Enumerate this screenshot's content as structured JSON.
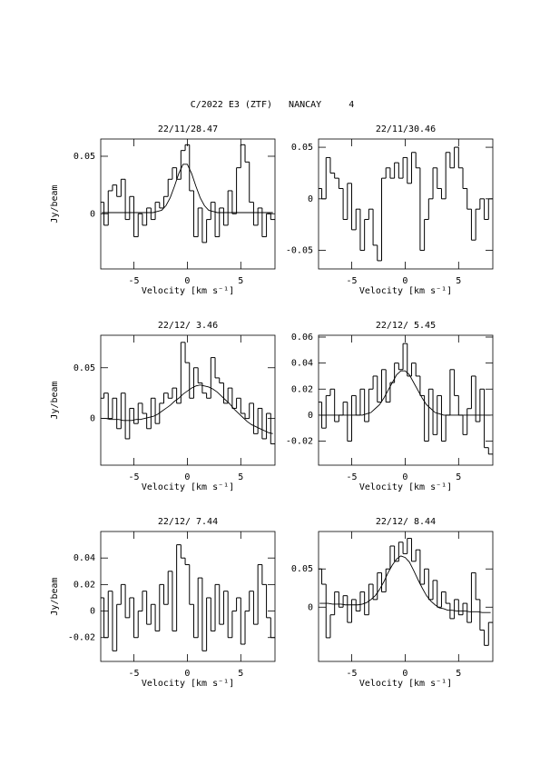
{
  "title": "C/2022 E3 (ZTF)   NANCAY     4",
  "chart_data": [
    {
      "type": "line",
      "title": "22/11/28.47",
      "xlabel": "Velocity [km s⁻¹]",
      "ylabel": "Jy/beam",
      "x": [
        -8.0,
        -7.6,
        -7.2,
        -6.8,
        -6.4,
        -6.0,
        -5.6,
        -5.2,
        -4.8,
        -4.4,
        -4.0,
        -3.6,
        -3.2,
        -2.8,
        -2.4,
        -2.0,
        -1.6,
        -1.2,
        -0.8,
        -0.4,
        0.0,
        0.4,
        0.8,
        1.2,
        1.6,
        2.0,
        2.4,
        2.8,
        3.2,
        3.6,
        4.0,
        4.4,
        4.8,
        5.2,
        5.6,
        6.0,
        6.4,
        6.8,
        7.2,
        7.6,
        8.0
      ],
      "xlim": [
        -8.1,
        8.2
      ],
      "xticks": [
        -5,
        0,
        5
      ],
      "ylim": [
        -0.048,
        0.065
      ],
      "yticks": [
        0,
        0.05
      ],
      "series": [
        {
          "color": "#000000",
          "step": true,
          "values": [
            0.01,
            -0.01,
            0.02,
            0.025,
            0.015,
            0.03,
            -0.005,
            0.015,
            -0.02,
            0.0,
            -0.01,
            0.005,
            -0.005,
            0.01,
            0.005,
            0.015,
            0.03,
            0.04,
            0.03,
            0.055,
            0.06,
            0.02,
            -0.02,
            0.005,
            -0.025,
            -0.005,
            0.01,
            -0.02,
            0.005,
            -0.01,
            0.02,
            0.0,
            0.04,
            0.06,
            0.045,
            0.01,
            -0.01,
            0.005,
            -0.02,
            0.0,
            -0.005
          ]
        },
        {
          "color": "#000000",
          "step": false,
          "values": [
            0.001,
            0.001,
            0.001,
            0.001,
            0.001,
            0.001,
            0.001,
            0.001,
            0.001,
            0.001,
            0.001,
            0.001,
            0.001,
            0.002,
            0.003,
            0.007,
            0.014,
            0.024,
            0.035,
            0.043,
            0.043,
            0.035,
            0.024,
            0.014,
            0.007,
            0.003,
            0.002,
            0.001,
            0.001,
            0.001,
            0.001,
            0.001,
            0.001,
            0.001,
            0.001,
            0.001,
            0.001,
            0.001,
            0.001,
            0.001,
            0.001
          ]
        }
      ]
    },
    {
      "type": "line",
      "title": "22/11/30.46",
      "xlabel": "Velocity [km s⁻¹]",
      "x": [
        -8.0,
        -7.6,
        -7.2,
        -6.8,
        -6.4,
        -6.0,
        -5.6,
        -5.2,
        -4.8,
        -4.4,
        -4.0,
        -3.6,
        -3.2,
        -2.8,
        -2.4,
        -2.0,
        -1.6,
        -1.2,
        -0.8,
        -0.4,
        0.0,
        0.4,
        0.8,
        1.2,
        1.6,
        2.0,
        2.4,
        2.8,
        3.2,
        3.6,
        4.0,
        4.4,
        4.8,
        5.2,
        5.6,
        6.0,
        6.4,
        6.8,
        7.2,
        7.6,
        8.0
      ],
      "xlim": [
        -8.1,
        8.2
      ],
      "xticks": [
        -5,
        0,
        5
      ],
      "ylim": [
        -0.068,
        0.058
      ],
      "yticks": [
        -0.05,
        0,
        0.05
      ],
      "series": [
        {
          "color": "#000000",
          "step": true,
          "values": [
            0.01,
            0.0,
            0.04,
            0.025,
            0.02,
            0.01,
            -0.02,
            0.015,
            -0.03,
            -0.01,
            -0.05,
            -0.02,
            -0.01,
            -0.045,
            -0.06,
            0.02,
            0.03,
            0.02,
            0.035,
            0.02,
            0.04,
            0.015,
            0.045,
            0.03,
            -0.05,
            -0.02,
            0.0,
            0.03,
            0.01,
            0.0,
            0.045,
            0.03,
            0.05,
            0.03,
            0.01,
            -0.01,
            -0.04,
            -0.01,
            0.0,
            -0.02,
            0.0
          ]
        }
      ]
    },
    {
      "type": "line",
      "title": "22/12/ 3.46",
      "xlabel": "Velocity [km s⁻¹]",
      "ylabel": "Jy/beam",
      "x": [
        -8.0,
        -7.6,
        -7.2,
        -6.8,
        -6.4,
        -6.0,
        -5.6,
        -5.2,
        -4.8,
        -4.4,
        -4.0,
        -3.6,
        -3.2,
        -2.8,
        -2.4,
        -2.0,
        -1.6,
        -1.2,
        -0.8,
        -0.4,
        0.0,
        0.4,
        0.8,
        1.2,
        1.6,
        2.0,
        2.4,
        2.8,
        3.2,
        3.6,
        4.0,
        4.4,
        4.8,
        5.2,
        5.6,
        6.0,
        6.4,
        6.8,
        7.2,
        7.6,
        8.0
      ],
      "xlim": [
        -8.1,
        8.2
      ],
      "xticks": [
        -5,
        0,
        5
      ],
      "ylim": [
        -0.046,
        0.082
      ],
      "yticks": [
        0,
        0.05
      ],
      "series": [
        {
          "color": "#000000",
          "step": true,
          "values": [
            0.02,
            0.025,
            0.0,
            0.02,
            -0.01,
            0.025,
            -0.02,
            0.01,
            -0.005,
            0.015,
            0.005,
            -0.01,
            0.02,
            -0.005,
            0.015,
            0.025,
            0.02,
            0.03,
            0.015,
            0.075,
            0.055,
            0.02,
            0.05,
            0.035,
            0.025,
            0.02,
            0.06,
            0.04,
            0.035,
            0.015,
            0.03,
            0.01,
            0.02,
            0.005,
            0.0,
            0.015,
            -0.015,
            0.01,
            -0.02,
            0.005,
            -0.025
          ]
        },
        {
          "color": "#000000",
          "step": false,
          "values": [
            0.0,
            0.0,
            -0.001,
            -0.001,
            -0.001,
            -0.002,
            -0.002,
            -0.002,
            -0.001,
            -0.001,
            0.0,
            0.001,
            0.002,
            0.004,
            0.007,
            0.01,
            0.013,
            0.017,
            0.02,
            0.024,
            0.027,
            0.03,
            0.032,
            0.033,
            0.032,
            0.031,
            0.029,
            0.026,
            0.022,
            0.018,
            0.014,
            0.009,
            0.005,
            0.001,
            -0.003,
            -0.006,
            -0.008,
            -0.01,
            -0.012,
            -0.014,
            -0.015
          ]
        }
      ]
    },
    {
      "type": "line",
      "title": "22/12/ 5.45",
      "xlabel": "Velocity [km s⁻¹]",
      "x": [
        -8.0,
        -7.6,
        -7.2,
        -6.8,
        -6.4,
        -6.0,
        -5.6,
        -5.2,
        -4.8,
        -4.4,
        -4.0,
        -3.6,
        -3.2,
        -2.8,
        -2.4,
        -2.0,
        -1.6,
        -1.2,
        -0.8,
        -0.4,
        0.0,
        0.4,
        0.8,
        1.2,
        1.6,
        2.0,
        2.4,
        2.8,
        3.2,
        3.6,
        4.0,
        4.4,
        4.8,
        5.2,
        5.6,
        6.0,
        6.4,
        6.8,
        7.2,
        7.6,
        8.0
      ],
      "xlim": [
        -8.1,
        8.2
      ],
      "xticks": [
        -5,
        0,
        5
      ],
      "ylim": [
        -0.0385,
        0.0614
      ],
      "yticks": [
        -0.02,
        0,
        0.02,
        0.04,
        0.06
      ],
      "series": [
        {
          "color": "#000000",
          "step": true,
          "values": [
            0.01,
            -0.01,
            0.015,
            0.02,
            -0.005,
            0.0,
            0.01,
            -0.02,
            0.015,
            0.0,
            0.02,
            -0.005,
            0.02,
            0.03,
            0.01,
            0.035,
            0.01,
            0.025,
            0.04,
            0.035,
            0.055,
            0.03,
            0.04,
            0.03,
            0.015,
            -0.02,
            0.02,
            -0.015,
            0.015,
            -0.02,
            0.0,
            0.035,
            0.015,
            0.0,
            -0.015,
            0.005,
            0.03,
            -0.005,
            0.02,
            -0.025,
            -0.03
          ]
        },
        {
          "color": "#000000",
          "step": false,
          "values": [
            0.0,
            0.0,
            0.0,
            0.0,
            0.0,
            0.0,
            0.0,
            0.0,
            0.0,
            0.0,
            0.0,
            0.001,
            0.002,
            0.005,
            0.008,
            0.013,
            0.019,
            0.025,
            0.031,
            0.034,
            0.034,
            0.031,
            0.025,
            0.019,
            0.013,
            0.008,
            0.005,
            0.002,
            0.001,
            0.0,
            0.0,
            0.0,
            0.0,
            0.0,
            0.0,
            0.0,
            0.0,
            0.0,
            0.0,
            0.0,
            0.0
          ]
        }
      ]
    },
    {
      "type": "line",
      "title": "22/12/ 7.44",
      "xlabel": "Velocity [km s⁻¹]",
      "ylabel": "Jy/beam",
      "x": [
        -8.0,
        -7.6,
        -7.2,
        -6.8,
        -6.4,
        -6.0,
        -5.6,
        -5.2,
        -4.8,
        -4.4,
        -4.0,
        -3.6,
        -3.2,
        -2.8,
        -2.4,
        -2.0,
        -1.6,
        -1.2,
        -0.8,
        -0.4,
        0.0,
        0.4,
        0.8,
        1.2,
        1.6,
        2.0,
        2.4,
        2.8,
        3.2,
        3.6,
        4.0,
        4.4,
        4.8,
        5.2,
        5.6,
        6.0,
        6.4,
        6.8,
        7.2,
        7.6,
        8.0
      ],
      "xlim": [
        -8.1,
        8.2
      ],
      "xticks": [
        -5,
        0,
        5
      ],
      "ylim": [
        -0.038,
        0.06
      ],
      "yticks": [
        -0.02,
        0,
        0.02,
        0.04
      ],
      "series": [
        {
          "color": "#000000",
          "step": true,
          "values": [
            0.01,
            -0.02,
            0.015,
            -0.03,
            0.005,
            0.02,
            -0.005,
            0.01,
            -0.02,
            0.0,
            0.015,
            -0.01,
            0.005,
            -0.015,
            0.02,
            0.005,
            0.03,
            -0.015,
            0.05,
            0.04,
            0.035,
            0.005,
            -0.02,
            0.025,
            -0.03,
            0.01,
            -0.015,
            0.02,
            -0.01,
            0.015,
            -0.02,
            0.0,
            0.01,
            -0.025,
            0.0,
            0.015,
            -0.01,
            0.035,
            0.02,
            -0.005,
            -0.02
          ]
        }
      ]
    },
    {
      "type": "line",
      "title": "22/12/ 8.44",
      "xlabel": "Velocity [km s⁻¹]",
      "x": [
        -8.0,
        -7.6,
        -7.2,
        -6.8,
        -6.4,
        -6.0,
        -5.6,
        -5.2,
        -4.8,
        -4.4,
        -4.0,
        -3.6,
        -3.2,
        -2.8,
        -2.4,
        -2.0,
        -1.6,
        -1.2,
        -0.8,
        -0.4,
        0.0,
        0.4,
        0.8,
        1.2,
        1.6,
        2.0,
        2.4,
        2.8,
        3.2,
        3.6,
        4.0,
        4.4,
        4.8,
        5.2,
        5.6,
        6.0,
        6.4,
        6.8,
        7.2,
        7.6,
        8.0
      ],
      "xlim": [
        -8.1,
        8.2
      ],
      "xticks": [
        -5,
        0,
        5
      ],
      "ylim": [
        -0.071,
        0.099
      ],
      "yticks": [
        0,
        0.05
      ],
      "series": [
        {
          "color": "#000000",
          "step": true,
          "values": [
            0.05,
            0.03,
            -0.04,
            -0.01,
            0.02,
            0.0,
            0.015,
            -0.02,
            0.01,
            -0.005,
            0.02,
            -0.01,
            0.03,
            0.01,
            0.045,
            0.02,
            0.05,
            0.08,
            0.06,
            0.085,
            0.07,
            0.09,
            0.06,
            0.075,
            0.03,
            0.05,
            0.01,
            0.035,
            0.0,
            0.02,
            0.005,
            -0.015,
            0.01,
            -0.01,
            0.005,
            -0.02,
            0.045,
            0.01,
            -0.03,
            -0.05,
            -0.02
          ]
        },
        {
          "color": "#000000",
          "step": false,
          "values": [
            0.005,
            0.005,
            0.005,
            0.004,
            0.004,
            0.004,
            0.003,
            0.003,
            0.003,
            0.003,
            0.004,
            0.006,
            0.01,
            0.015,
            0.023,
            0.033,
            0.045,
            0.055,
            0.063,
            0.067,
            0.065,
            0.059,
            0.048,
            0.036,
            0.025,
            0.015,
            0.008,
            0.003,
            -0.001,
            -0.002,
            -0.004,
            -0.004,
            -0.005,
            -0.005,
            -0.005,
            -0.006,
            -0.006,
            -0.006,
            -0.007,
            -0.007,
            -0.007
          ]
        }
      ]
    }
  ]
}
